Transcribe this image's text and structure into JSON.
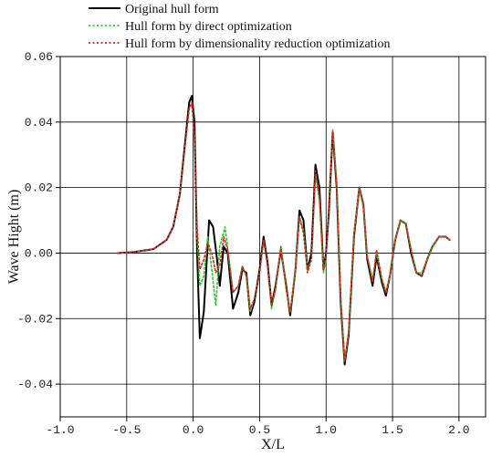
{
  "chart_data": {
    "type": "line",
    "title": "",
    "xlabel": "X/L",
    "ylabel": "Wave Hight (m)",
    "xlim": [
      -1.0,
      2.2
    ],
    "ylim": [
      -0.05,
      0.06
    ],
    "grid": true,
    "legend_position": "top",
    "x_ticks": [
      -1.0,
      -0.5,
      0.0,
      0.5,
      1.0,
      1.5,
      2.0
    ],
    "x_tick_labels": [
      "-1.0",
      "-0.5",
      "0.0",
      "0.5",
      "1.0",
      "1.5",
      "2.0"
    ],
    "y_ticks": [
      -0.04,
      -0.02,
      0.0,
      0.02,
      0.04,
      0.06
    ],
    "y_tick_labels": [
      "-0.04",
      "-0.02",
      "0.00",
      "0.02",
      "0.04",
      "0.06"
    ],
    "series": [
      {
        "name": "Original hull form",
        "color": "#000000",
        "style": "solid",
        "points": [
          [
            -0.57,
            0.0
          ],
          [
            -0.45,
            0.0003
          ],
          [
            -0.3,
            0.0012
          ],
          [
            -0.2,
            0.004
          ],
          [
            -0.15,
            0.008
          ],
          [
            -0.1,
            0.018
          ],
          [
            -0.06,
            0.034
          ],
          [
            -0.03,
            0.046
          ],
          [
            -0.01,
            0.048
          ],
          [
            0.01,
            0.04
          ],
          [
            0.03,
            0.0
          ],
          [
            0.05,
            -0.026
          ],
          [
            0.08,
            -0.018
          ],
          [
            0.12,
            0.01
          ],
          [
            0.15,
            0.008
          ],
          [
            0.18,
            -0.002
          ],
          [
            0.2,
            -0.01
          ],
          [
            0.23,
            0.002
          ],
          [
            0.26,
            0.0
          ],
          [
            0.3,
            -0.017
          ],
          [
            0.34,
            -0.012
          ],
          [
            0.37,
            -0.005
          ],
          [
            0.4,
            -0.006
          ],
          [
            0.43,
            -0.019
          ],
          [
            0.46,
            -0.015
          ],
          [
            0.5,
            -0.005
          ],
          [
            0.53,
            0.005
          ],
          [
            0.56,
            -0.003
          ],
          [
            0.59,
            -0.016
          ],
          [
            0.62,
            -0.01
          ],
          [
            0.66,
            0.001
          ],
          [
            0.7,
            -0.01
          ],
          [
            0.73,
            -0.019
          ],
          [
            0.77,
            -0.005
          ],
          [
            0.8,
            0.013
          ],
          [
            0.83,
            0.01
          ],
          [
            0.86,
            -0.005
          ],
          [
            0.89,
            0.0
          ],
          [
            0.92,
            0.027
          ],
          [
            0.95,
            0.02
          ],
          [
            0.98,
            -0.005
          ],
          [
            1.0,
            0.0
          ],
          [
            1.02,
            0.012
          ],
          [
            1.05,
            0.037
          ],
          [
            1.08,
            0.02
          ],
          [
            1.11,
            -0.015
          ],
          [
            1.14,
            -0.034
          ],
          [
            1.17,
            -0.025
          ],
          [
            1.21,
            0.005
          ],
          [
            1.25,
            0.02
          ],
          [
            1.28,
            0.015
          ],
          [
            1.31,
            -0.002
          ],
          [
            1.35,
            -0.01
          ],
          [
            1.38,
            -0.001
          ],
          [
            1.42,
            -0.009
          ],
          [
            1.45,
            -0.013
          ],
          [
            1.48,
            -0.007
          ],
          [
            1.52,
            0.004
          ],
          [
            1.56,
            0.01
          ],
          [
            1.6,
            0.009
          ],
          [
            1.64,
            0.0
          ],
          [
            1.68,
            -0.006
          ],
          [
            1.72,
            -0.007
          ],
          [
            1.76,
            -0.002
          ],
          [
            1.8,
            0.002
          ],
          [
            1.85,
            0.005
          ],
          [
            1.9,
            0.005
          ],
          [
            1.93,
            0.004
          ]
        ]
      },
      {
        "name": "Hull form by direct optimization",
        "color": "#22cc22",
        "style": "dotted",
        "points": [
          [
            -0.57,
            0.0
          ],
          [
            -0.45,
            0.0003
          ],
          [
            -0.3,
            0.0012
          ],
          [
            -0.2,
            0.004
          ],
          [
            -0.15,
            0.008
          ],
          [
            -0.1,
            0.018
          ],
          [
            -0.06,
            0.033
          ],
          [
            -0.03,
            0.044
          ],
          [
            -0.01,
            0.046
          ],
          [
            0.01,
            0.035
          ],
          [
            0.03,
            0.005
          ],
          [
            0.05,
            -0.01
          ],
          [
            0.08,
            -0.007
          ],
          [
            0.11,
            0.005
          ],
          [
            0.14,
            -0.005
          ],
          [
            0.17,
            -0.016
          ],
          [
            0.2,
            0.002
          ],
          [
            0.24,
            0.008
          ],
          [
            0.27,
            -0.002
          ],
          [
            0.3,
            -0.012
          ],
          [
            0.34,
            -0.01
          ],
          [
            0.37,
            -0.004
          ],
          [
            0.4,
            -0.007
          ],
          [
            0.43,
            -0.018
          ],
          [
            0.46,
            -0.014
          ],
          [
            0.5,
            -0.006
          ],
          [
            0.53,
            0.004
          ],
          [
            0.56,
            -0.004
          ],
          [
            0.59,
            -0.017
          ],
          [
            0.62,
            -0.011
          ],
          [
            0.66,
            0.002
          ],
          [
            0.7,
            -0.011
          ],
          [
            0.73,
            -0.018
          ],
          [
            0.77,
            -0.005
          ],
          [
            0.8,
            0.011
          ],
          [
            0.83,
            0.007
          ],
          [
            0.86,
            -0.005
          ],
          [
            0.89,
            -0.002
          ],
          [
            0.92,
            0.024
          ],
          [
            0.95,
            0.016
          ],
          [
            0.98,
            -0.006
          ],
          [
            1.0,
            -0.002
          ],
          [
            1.02,
            0.014
          ],
          [
            1.05,
            0.038
          ],
          [
            1.08,
            0.022
          ],
          [
            1.11,
            -0.013
          ],
          [
            1.14,
            -0.033
          ],
          [
            1.17,
            -0.024
          ],
          [
            1.21,
            0.006
          ],
          [
            1.25,
            0.02
          ],
          [
            1.28,
            0.014
          ],
          [
            1.31,
            -0.001
          ],
          [
            1.35,
            -0.008
          ],
          [
            1.38,
            0.0
          ],
          [
            1.42,
            -0.008
          ],
          [
            1.45,
            -0.012
          ],
          [
            1.48,
            -0.007
          ],
          [
            1.52,
            0.004
          ],
          [
            1.56,
            0.01
          ],
          [
            1.6,
            0.009
          ],
          [
            1.64,
            0.001
          ],
          [
            1.68,
            -0.006
          ],
          [
            1.72,
            -0.006
          ],
          [
            1.76,
            -0.002
          ],
          [
            1.8,
            0.002
          ],
          [
            1.85,
            0.005
          ],
          [
            1.9,
            0.005
          ],
          [
            1.93,
            0.004
          ]
        ]
      },
      {
        "name": "Hull form by dimensionality reduction optimization",
        "color": "#dd2222",
        "style": "dotted",
        "points": [
          [
            -0.57,
            0.0
          ],
          [
            -0.45,
            0.0003
          ],
          [
            -0.3,
            0.0012
          ],
          [
            -0.2,
            0.004
          ],
          [
            -0.15,
            0.008
          ],
          [
            -0.1,
            0.018
          ],
          [
            -0.06,
            0.033
          ],
          [
            -0.03,
            0.044
          ],
          [
            -0.01,
            0.046
          ],
          [
            0.01,
            0.036
          ],
          [
            0.03,
            0.008
          ],
          [
            0.05,
            -0.005
          ],
          [
            0.08,
            -0.002
          ],
          [
            0.11,
            0.003
          ],
          [
            0.14,
            0.0
          ],
          [
            0.17,
            -0.006
          ],
          [
            0.2,
            -0.004
          ],
          [
            0.23,
            0.005
          ],
          [
            0.26,
            0.001
          ],
          [
            0.3,
            -0.012
          ],
          [
            0.34,
            -0.01
          ],
          [
            0.37,
            -0.004
          ],
          [
            0.4,
            -0.007
          ],
          [
            0.43,
            -0.017
          ],
          [
            0.46,
            -0.014
          ],
          [
            0.5,
            -0.006
          ],
          [
            0.53,
            0.004
          ],
          [
            0.56,
            -0.004
          ],
          [
            0.59,
            -0.016
          ],
          [
            0.62,
            -0.011
          ],
          [
            0.66,
            0.002
          ],
          [
            0.7,
            -0.011
          ],
          [
            0.73,
            -0.018
          ],
          [
            0.77,
            -0.005
          ],
          [
            0.8,
            0.011
          ],
          [
            0.83,
            0.006
          ],
          [
            0.86,
            -0.006
          ],
          [
            0.89,
            -0.002
          ],
          [
            0.92,
            0.025
          ],
          [
            0.95,
            0.017
          ],
          [
            0.98,
            -0.005
          ],
          [
            1.0,
            -0.001
          ],
          [
            1.02,
            0.013
          ],
          [
            1.05,
            0.037
          ],
          [
            1.08,
            0.021
          ],
          [
            1.11,
            -0.014
          ],
          [
            1.14,
            -0.033
          ],
          [
            1.17,
            -0.024
          ],
          [
            1.21,
            0.006
          ],
          [
            1.25,
            0.02
          ],
          [
            1.28,
            0.015
          ],
          [
            1.31,
            -0.001
          ],
          [
            1.35,
            -0.009
          ],
          [
            1.38,
            0.001
          ],
          [
            1.42,
            -0.008
          ],
          [
            1.45,
            -0.012
          ],
          [
            1.48,
            -0.007
          ],
          [
            1.52,
            0.004
          ],
          [
            1.56,
            0.01
          ],
          [
            1.6,
            0.009
          ],
          [
            1.64,
            0.001
          ],
          [
            1.68,
            -0.006
          ],
          [
            1.72,
            -0.007
          ],
          [
            1.76,
            -0.002
          ],
          [
            1.8,
            0.002
          ],
          [
            1.85,
            0.005
          ],
          [
            1.9,
            0.005
          ],
          [
            1.93,
            0.004
          ]
        ]
      }
    ]
  }
}
